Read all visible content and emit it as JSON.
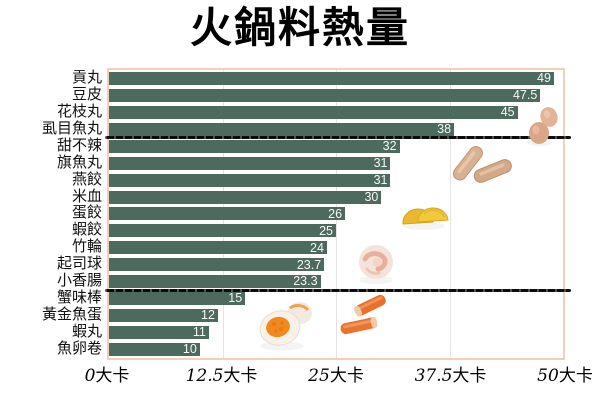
{
  "chart_data": {
    "type": "bar",
    "orientation": "horizontal",
    "title": "火鍋料熱量",
    "unit": "大卡",
    "categories": [
      "貢丸",
      "豆皮",
      "花枝丸",
      "虱目魚丸",
      "甜不辣",
      "旗魚丸",
      "燕餃",
      "米血",
      "蛋餃",
      "蝦餃",
      "竹輪",
      "起司球",
      "小香腸",
      "蟹味棒",
      "黃金魚蛋",
      "蝦丸",
      "魚卵卷"
    ],
    "values": [
      49,
      47.5,
      45,
      38,
      32,
      31,
      31,
      30,
      26,
      25,
      24,
      23.7,
      23.3,
      15,
      12,
      11,
      10
    ],
    "value_labels": [
      "49",
      "47.5",
      "45",
      "38",
      "32",
      "31",
      "31",
      "30",
      "26",
      "25",
      "24",
      "23.7",
      "23.3",
      "15",
      "12",
      "11",
      "10"
    ],
    "xlim": [
      0,
      50
    ],
    "x_ticks": [
      {
        "value": 0,
        "num": "0",
        "unit": "大卡"
      },
      {
        "value": 12.5,
        "num": "12.5",
        "unit": "大卡"
      },
      {
        "value": 25,
        "num": "25",
        "unit": "大卡"
      },
      {
        "value": 37.5,
        "num": "37.5",
        "unit": "大卡"
      },
      {
        "value": 50,
        "num": "50",
        "unit": "大卡"
      }
    ],
    "gridlines_at": [
      12.5,
      25,
      37.5
    ],
    "separators_after_index": [
      3,
      12
    ],
    "grid": "vertical-only",
    "legend": null,
    "bar_color": "#4c6a5e",
    "value_text_color": "#f7f7f7",
    "plot_border_color": "#f2cfb8",
    "separator_color": "#0c0c0c"
  },
  "illustrations": [
    {
      "name": "milkfish-fishballs-image"
    },
    {
      "name": "tempura-sticks-image"
    },
    {
      "name": "egg-dumplings-image"
    },
    {
      "name": "shrimp-ball-image"
    },
    {
      "name": "golden-fish-egg-image"
    },
    {
      "name": "crab-sticks-image"
    }
  ]
}
